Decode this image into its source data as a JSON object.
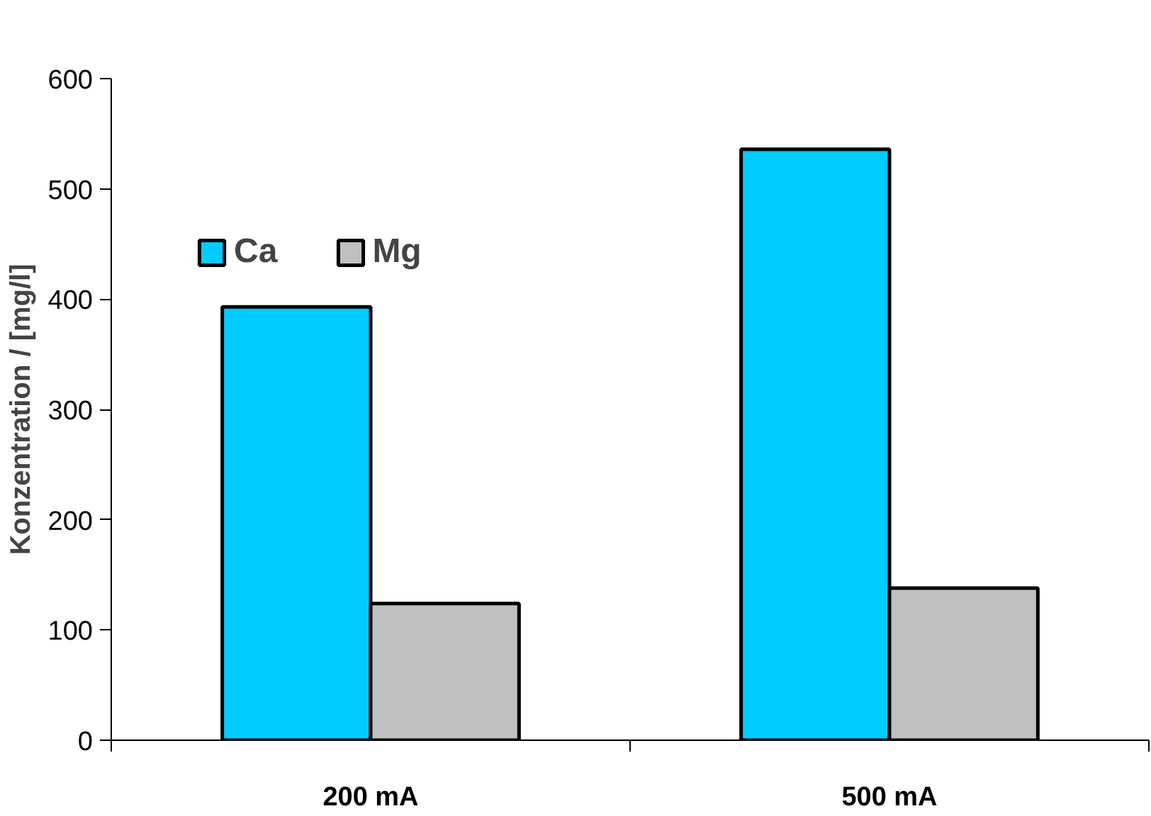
{
  "chart_data": {
    "type": "bar",
    "ylabel": "Konzentration / [mg/l]",
    "categories": [
      "200 mA",
      "500 mA"
    ],
    "series": [
      {
        "name": "Ca",
        "color": "#00ccff",
        "values": [
          393,
          536
        ]
      },
      {
        "name": "Mg",
        "color": "#c0c0c0",
        "values": [
          124,
          138
        ]
      }
    ],
    "ylim": [
      0,
      600
    ],
    "yticks": [
      0,
      100,
      200,
      300,
      400,
      500,
      600
    ],
    "grid": false,
    "legend": "top left"
  }
}
